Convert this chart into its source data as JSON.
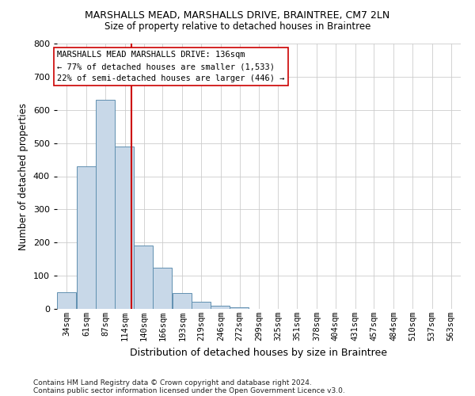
{
  "title1": "MARSHALLS MEAD, MARSHALLS DRIVE, BRAINTREE, CM7 2LN",
  "title2": "Size of property relative to detached houses in Braintree",
  "xlabel": "Distribution of detached houses by size in Braintree",
  "ylabel": "Number of detached properties",
  "bar_color": "#c8d8e8",
  "bar_edge_color": "#6090b0",
  "grid_color": "#cccccc",
  "bg_color": "#ffffff",
  "marker_color": "#cc0000",
  "marker_value": 136,
  "categories": [
    "34sqm",
    "61sqm",
    "87sqm",
    "114sqm",
    "140sqm",
    "166sqm",
    "193sqm",
    "219sqm",
    "246sqm",
    "272sqm",
    "299sqm",
    "325sqm",
    "351sqm",
    "378sqm",
    "404sqm",
    "431sqm",
    "457sqm",
    "484sqm",
    "510sqm",
    "537sqm",
    "563sqm"
  ],
  "bin_edges": [
    34,
    61,
    87,
    114,
    140,
    166,
    193,
    219,
    246,
    272,
    299,
    325,
    351,
    378,
    404,
    431,
    457,
    484,
    510,
    537,
    563
  ],
  "bin_width": 27,
  "values": [
    50,
    430,
    630,
    490,
    190,
    125,
    48,
    22,
    10,
    5,
    0,
    0,
    0,
    0,
    0,
    0,
    0,
    0,
    0,
    0,
    0
  ],
  "ylim": [
    0,
    800
  ],
  "yticks": [
    0,
    100,
    200,
    300,
    400,
    500,
    600,
    700,
    800
  ],
  "annotation_lines": [
    "MARSHALLS MEAD MARSHALLS DRIVE: 136sqm",
    "← 77% of detached houses are smaller (1,533)",
    "22% of semi-detached houses are larger (446) →"
  ],
  "footnote1": "Contains HM Land Registry data © Crown copyright and database right 2024.",
  "footnote2": "Contains public sector information licensed under the Open Government Licence v3.0."
}
